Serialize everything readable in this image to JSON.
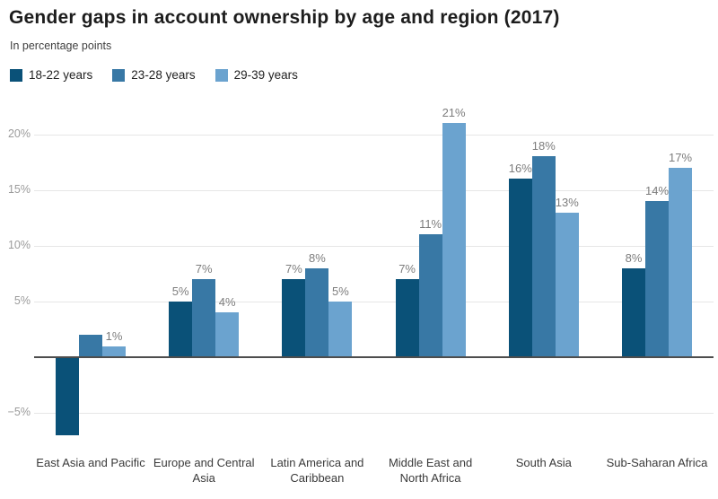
{
  "header": {
    "title": "Gender gaps in account ownership by age and region (2017)",
    "subtitle": "In percentage points"
  },
  "legend": {
    "position": "top",
    "items": [
      {
        "label": "18-22 years",
        "color": "#0a5178"
      },
      {
        "label": "23-28 years",
        "color": "#3878a5"
      },
      {
        "label": "29-39 years",
        "color": "#6ba3cf"
      }
    ]
  },
  "chart_data": {
    "type": "bar",
    "title": "Gender gaps in account ownership by age and region (2017)",
    "subtitle": "In percentage points",
    "categories": [
      "East Asia and Pacific",
      "Europe and Central Asia",
      "Latin America and Caribbean",
      "Middle East and North Africa",
      "South Asia",
      "Sub-Saharan Africa"
    ],
    "category_label_lines": [
      [
        "East Asia and Pacific"
      ],
      [
        "Europe and Central",
        "Asia"
      ],
      [
        "Latin America and",
        "Caribbean"
      ],
      [
        "Middle East and",
        "North Africa"
      ],
      [
        "South Asia"
      ],
      [
        "Sub-Saharan Africa"
      ]
    ],
    "series": [
      {
        "name": "18-22 years",
        "color": "#0a5178",
        "values": [
          -7,
          5,
          7,
          7,
          16,
          8
        ],
        "labels": [
          "",
          "5%",
          "7%",
          "7%",
          "16%",
          "8%"
        ]
      },
      {
        "name": "23-28 years",
        "color": "#3878a5",
        "values": [
          2,
          7,
          8,
          11,
          18,
          14
        ],
        "labels": [
          "",
          "7%",
          "8%",
          "11%",
          "18%",
          "14%"
        ]
      },
      {
        "name": "29-39 years",
        "color": "#6ba3cf",
        "values": [
          1,
          4,
          5,
          21,
          13,
          17
        ],
        "labels": [
          "1%",
          "4%",
          "5%",
          "21%",
          "13%",
          "17%"
        ]
      }
    ],
    "xlabel": "",
    "ylabel": "",
    "ylim": [
      -7.5,
      22
    ],
    "grid": true,
    "legend_position": "top",
    "y_axis_ticks": [
      {
        "value": 20,
        "label": "20%"
      },
      {
        "value": 15,
        "label": "15%"
      },
      {
        "value": 10,
        "label": "10%"
      },
      {
        "value": 5,
        "label": "5%"
      },
      {
        "value": 0,
        "label": ""
      },
      {
        "value": -5,
        "label": "−5%"
      }
    ]
  },
  "colors": {
    "background": "#ffffff",
    "gridline": "#e6e6e6",
    "zero_axis": "#4d4d4d",
    "tick_text": "#9b9b9b",
    "bar_label_text": "#7d7d7d",
    "category_text": "#3a3a3a",
    "title_text": "#1d1d1d",
    "subtitle_text": "#3f3f3f"
  }
}
